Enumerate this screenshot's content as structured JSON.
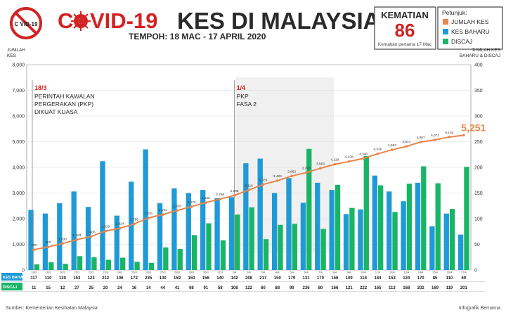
{
  "header": {
    "covid_prefix": "C",
    "covid_suffix": "VID-19",
    "title": "KES DI MALAYSIA",
    "logo_text": "C VID-19",
    "period": "TEMPOH: 18 MAC - 17 APRIL 2020"
  },
  "deaths": {
    "label": "KEMATIAN",
    "value": "86",
    "note": "Kematian pertama 17 Mac"
  },
  "legend": {
    "title": "Petunjuk:",
    "items": [
      {
        "label": "JUMLAH KES",
        "color": "#e8864e"
      },
      {
        "label": "KES BAHARU",
        "color": "#1f9ad6"
      },
      {
        "label": "DISCAJ",
        "color": "#19b567"
      }
    ]
  },
  "y_left_label": [
    "JUMLAH",
    "KES"
  ],
  "y_right_label": [
    "JUMLAH KES",
    "BAHARU & DISCAJ"
  ],
  "annotations": [
    {
      "date": "18/3",
      "lines": [
        "PERINTAH KAWALAN",
        "PERGERAKAN (PKP)",
        "DIKUAT KUASA"
      ],
      "index": 0
    },
    {
      "date": "1/4",
      "lines": [
        "PKP",
        "FASA 2"
      ],
      "index": 14
    }
  ],
  "final_total_label": "5,251",
  "table_labels": {
    "new": "KES BAHARU",
    "discharged": "DISCAJ"
  },
  "source": "Sumber: Kementerian Kesihatan Malaysia",
  "credit": "Infografik Bernama",
  "chart_data": {
    "type": "bar",
    "x": [
      "18/3",
      "19/3",
      "20/3",
      "21/3",
      "22/3",
      "23/3",
      "24/3",
      "25/3",
      "26/3",
      "27/3",
      "28/3",
      "29/3",
      "30/3",
      "31/3",
      "1/4",
      "2/4",
      "3/4",
      "4/4",
      "5/4",
      "6/4",
      "7/4",
      "8/4",
      "9/4",
      "10/4",
      "11/4",
      "12/4",
      "13/4",
      "14/4",
      "15/4",
      "16/4",
      "17/4"
    ],
    "y_left": {
      "min": 0,
      "max": 8000,
      "ticks": [
        "0",
        "1,000",
        "2,000",
        "3,000",
        "4,000",
        "5,000",
        "6,000",
        "7,000",
        "8,000"
      ]
    },
    "y_right": {
      "min": 0,
      "max": 400,
      "ticks": [
        "0",
        "50",
        "100",
        "150",
        "200",
        "250",
        "300",
        "350",
        "400"
      ]
    },
    "grid": true,
    "legend_position": "top-right",
    "series": [
      {
        "name": "JUMLAH KES",
        "axis": "left",
        "kind": "line",
        "values": [
          790,
          900,
          1030,
          1183,
          1306,
          1518,
          1624,
          1796,
          2031,
          2161,
          2320,
          2470,
          2626,
          2766,
          2908,
          3116,
          3333,
          3483,
          3662,
          3793,
          3963,
          4119,
          4228,
          4346,
          4530,
          4683,
          4817,
          4987,
          5072,
          5182,
          5251
        ],
        "labels": [
          "790",
          "900",
          "1,030",
          "1,183",
          "1,306",
          "1,518",
          "1,624",
          "1,796",
          "2,031",
          "2,161",
          "2,320",
          "2,470",
          "2,626",
          "2,766",
          "2,908",
          "3,116",
          "3,333",
          "3,483",
          "3,662",
          "3,793",
          "3,963",
          "4,119",
          "4,228",
          "4,346",
          "4,530",
          "4,683",
          "4,817",
          "4,987",
          "5,072",
          "5,182",
          "5,251"
        ]
      },
      {
        "name": "KES BAHARU",
        "axis": "right",
        "kind": "bar",
        "values": [
          117,
          110,
          130,
          153,
          123,
          212,
          106,
          172,
          235,
          130,
          159,
          150,
          156,
          140,
          142,
          208,
          217,
          150,
          179,
          131,
          170,
          156,
          109,
          118,
          184,
          153,
          134,
          170,
          85,
          110,
          69
        ]
      },
      {
        "name": "DISCAJ",
        "axis": "right",
        "kind": "bar",
        "values": [
          11,
          15,
          12,
          27,
          25,
          20,
          24,
          16,
          14,
          44,
          41,
          68,
          91,
          58,
          108,
          122,
          60,
          88,
          90,
          236,
          80,
          166,
          121,
          222,
          165,
          113,
          168,
          202,
          169,
          119,
          201
        ]
      }
    ]
  }
}
